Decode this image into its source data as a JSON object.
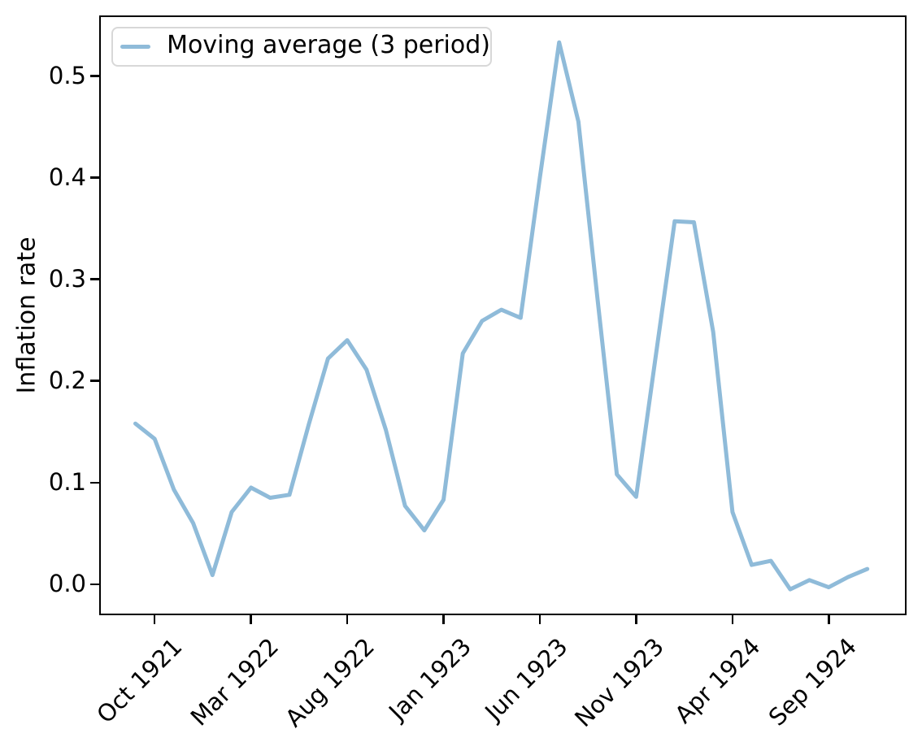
{
  "figure": {
    "ylabel": "Inflation rate",
    "background_color": "#ffffff",
    "axis_color": "#000000",
    "text_color": "#000000"
  },
  "legend": {
    "label": "Moving average (3 period)",
    "line_color": "#8fbbd9",
    "border_color": "#d8d8d8",
    "position": "upper left"
  },
  "chart_data": {
    "type": "line",
    "title": "",
    "xlabel": "",
    "ylabel": "Inflation rate",
    "grid": false,
    "legend_position": "upper left",
    "x": [
      "Sep 1921",
      "Oct 1921",
      "Nov 1921",
      "Dec 1921",
      "Jan 1922",
      "Feb 1922",
      "Mar 1922",
      "Apr 1922",
      "May 1922",
      "Jun 1922",
      "Jul 1922",
      "Aug 1922",
      "Sep 1922",
      "Oct 1922",
      "Nov 1922",
      "Dec 1922",
      "Jan 1923",
      "Feb 1923",
      "Mar 1923",
      "Apr 1923",
      "May 1923",
      "Jun 1923",
      "Jul 1923",
      "Aug 1923",
      "Sep 1923",
      "Oct 1923",
      "Nov 1923",
      "Dec 1923",
      "Jan 1924",
      "Feb 1924",
      "Mar 1924",
      "Apr 1924",
      "May 1924",
      "Jun 1924",
      "Jul 1924",
      "Aug 1924",
      "Sep 1924",
      "Oct 1924",
      "Nov 1924"
    ],
    "series": [
      {
        "name": "Moving average (3 period)",
        "color": "#8fbbd9",
        "line_width": 5,
        "values": [
          0.158,
          0.143,
          0.093,
          0.06,
          0.009,
          0.071,
          0.095,
          0.085,
          0.088,
          0.157,
          0.222,
          0.24,
          0.211,
          0.152,
          0.077,
          0.053,
          0.083,
          0.227,
          0.259,
          0.27,
          0.262,
          0.4,
          0.533,
          0.455,
          0.28,
          0.108,
          0.086,
          0.222,
          0.357,
          0.356,
          0.248,
          0.071,
          0.019,
          0.023,
          -0.005,
          0.004,
          -0.003,
          0.007,
          0.015
        ]
      }
    ],
    "x_tick_labels": [
      "Oct 1921",
      "Mar 1922",
      "Aug 1922",
      "Jan 1923",
      "Jun 1923",
      "Nov 1923",
      "Apr 1924",
      "Sep 1924"
    ],
    "x_tick_indices": [
      1,
      6,
      11,
      16,
      21,
      26,
      31,
      36
    ],
    "y_tick_values": [
      0.0,
      0.1,
      0.2,
      0.3,
      0.4,
      0.5
    ],
    "y_tick_labels": [
      "0.0",
      "0.1",
      "0.2",
      "0.3",
      "0.4",
      "0.5"
    ],
    "xlim_index": [
      -1.88,
      40.04
    ],
    "ylim": [
      -0.0305,
      0.5595
    ]
  }
}
